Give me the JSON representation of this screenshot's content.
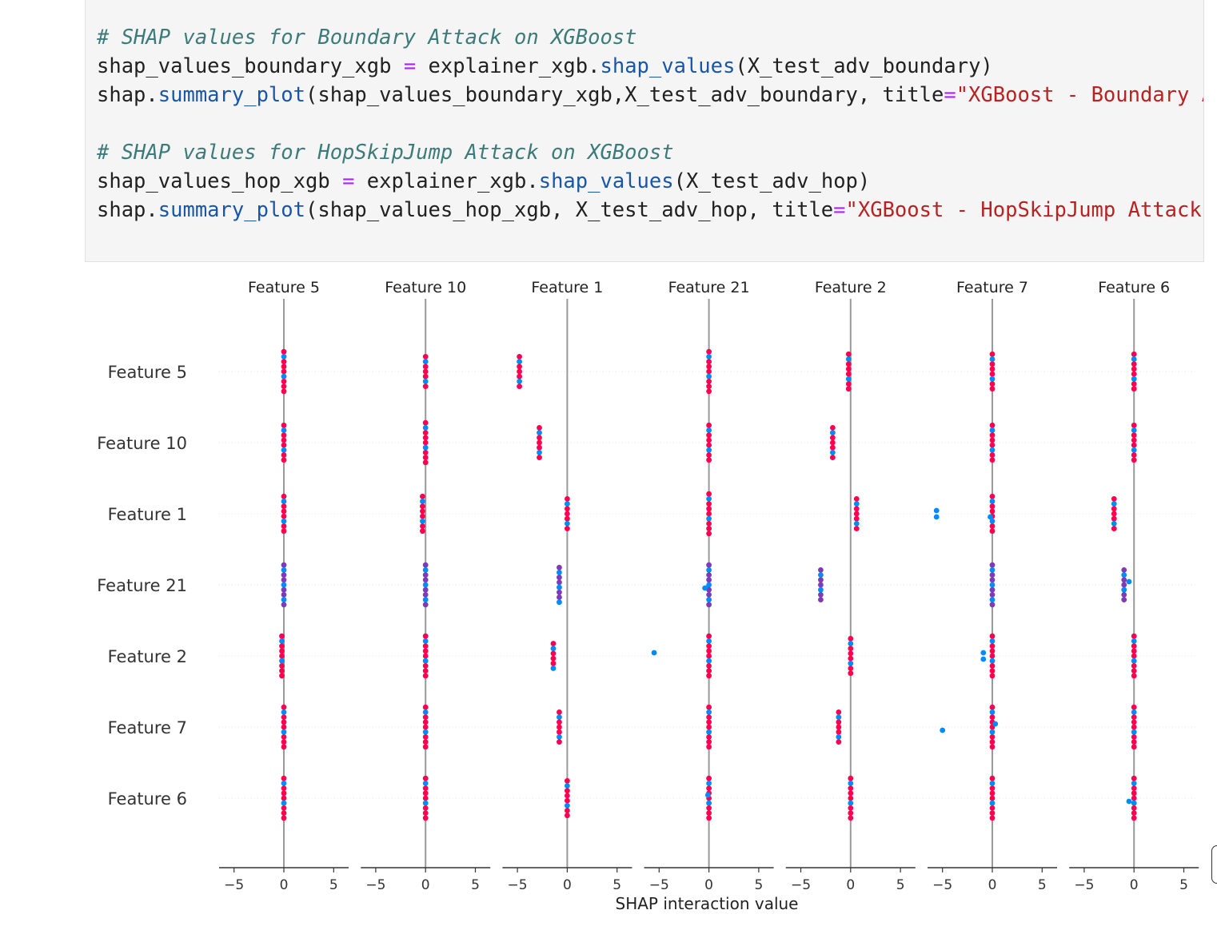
{
  "code_cell": {
    "line1_comment": "# SHAP values for Boundary Attack on XGBoost",
    "line2_var": "shap_values_boundary_xgb",
    "line2_eq": "=",
    "line2_obj": "explainer_xgb.",
    "line2_fn": "shap_values",
    "line2_args": "(X_test_adv_boundary)",
    "line3_obj": "shap.",
    "line3_fn": "summary_plot",
    "line3_args": "(shap_values_boundary_xgb,X_test_adv_boundary, title",
    "line3_eq": "=",
    "line3_str": "\"XGBoost - Boundary Attack\")",
    "line5_comment": "# SHAP values for HopSkipJump Attack on XGBoost",
    "line6_var": "shap_values_hop_xgb",
    "line6_eq": "=",
    "line6_obj": "explainer_xgb.",
    "line6_fn": "shap_values",
    "line6_args": "(X_test_adv_hop)",
    "line7_obj": "shap.",
    "line7_fn": "summary_plot",
    "line7_args": "(shap_values_hop_xgb, X_test_adv_hop, title",
    "line7_eq": "=",
    "line7_str": "\"XGBoost - HopSkipJump Attack\")"
  },
  "chart_data": {
    "type": "scatter",
    "xlabel": "SHAP interaction value",
    "xlim": [
      -6.5,
      6.5
    ],
    "xticks": [
      -5,
      0,
      5
    ],
    "xtick_labels": [
      "−5",
      "0",
      "5"
    ],
    "features": [
      "Feature 5",
      "Feature 10",
      "Feature 1",
      "Feature 21",
      "Feature 2",
      "Feature 7",
      "Feature 6"
    ],
    "colors": {
      "high": "#ff0051",
      "low": "#008bfb",
      "mid": "#7d3cb5",
      "zero_line": "#999999"
    },
    "clusters": [
      [
        {
          "x": 0,
          "n": 9,
          "c": "mix"
        },
        {
          "x": 0,
          "n": 7,
          "c": "mix"
        },
        {
          "x": -4.8,
          "n": 7,
          "c": "mix"
        },
        {
          "x": 0,
          "n": 9,
          "c": "mix"
        },
        {
          "x": -0.2,
          "n": 8,
          "c": "mix"
        },
        {
          "x": 0,
          "n": 8,
          "c": "mix"
        },
        {
          "x": 0,
          "n": 8,
          "c": "mix"
        }
      ],
      [
        {
          "x": 0,
          "n": 8,
          "c": "mix"
        },
        {
          "x": 0,
          "n": 9,
          "c": "mix"
        },
        {
          "x": -2.8,
          "n": 7,
          "c": "mix"
        },
        {
          "x": 0,
          "n": 8,
          "c": "mix"
        },
        {
          "x": -1.8,
          "n": 7,
          "c": "mix"
        },
        {
          "x": 0,
          "n": 8,
          "c": "mix"
        },
        {
          "x": 0,
          "n": 8,
          "c": "mix"
        }
      ],
      [
        {
          "x": 0,
          "n": 8,
          "c": "mix"
        },
        {
          "x": -0.3,
          "n": 8,
          "c": "mix"
        },
        {
          "x": 0,
          "n": 7,
          "c": "mix"
        },
        {
          "x": 0,
          "n": 9,
          "c": "mix"
        },
        {
          "x": 0.6,
          "n": 7,
          "c": "mix"
        },
        {
          "x": 0,
          "n": 8,
          "c": "mix"
        },
        {
          "x": -2.0,
          "n": 7,
          "c": "mix"
        }
      ],
      [
        {
          "x": 0,
          "n": 9,
          "c": "purple"
        },
        {
          "x": 0,
          "n": 9,
          "c": "purple"
        },
        {
          "x": -0.8,
          "n": 8,
          "c": "purple"
        },
        {
          "x": 0,
          "n": 9,
          "c": "purple"
        },
        {
          "x": -3.0,
          "n": 7,
          "c": "purple"
        },
        {
          "x": 0,
          "n": 9,
          "c": "purple"
        },
        {
          "x": -1.0,
          "n": 7,
          "c": "purple"
        }
      ],
      [
        {
          "x": -0.2,
          "n": 9,
          "c": "mix"
        },
        {
          "x": 0,
          "n": 9,
          "c": "mix"
        },
        {
          "x": -1.4,
          "n": 6,
          "c": "mix"
        },
        {
          "x": 0,
          "n": 9,
          "c": "mix"
        },
        {
          "x": 0,
          "n": 8,
          "c": "mix"
        },
        {
          "x": 0,
          "n": 9,
          "c": "mix"
        },
        {
          "x": 0,
          "n": 9,
          "c": "mix"
        }
      ],
      [
        {
          "x": 0,
          "n": 9,
          "c": "mix"
        },
        {
          "x": 0,
          "n": 9,
          "c": "mix"
        },
        {
          "x": -0.8,
          "n": 7,
          "c": "mix"
        },
        {
          "x": 0,
          "n": 9,
          "c": "mix"
        },
        {
          "x": -1.2,
          "n": 7,
          "c": "mix"
        },
        {
          "x": 0,
          "n": 9,
          "c": "mix"
        },
        {
          "x": 0,
          "n": 9,
          "c": "mix"
        }
      ],
      [
        {
          "x": 0,
          "n": 9,
          "c": "mix"
        },
        {
          "x": 0,
          "n": 9,
          "c": "mix"
        },
        {
          "x": 0,
          "n": 8,
          "c": "mix"
        },
        {
          "x": 0,
          "n": 9,
          "c": "mix"
        },
        {
          "x": 0,
          "n": 9,
          "c": "mix"
        },
        {
          "x": 0,
          "n": 9,
          "c": "mix"
        },
        {
          "x": 0,
          "n": 9,
          "c": "mix"
        }
      ]
    ],
    "outliers": [
      {
        "col": 3,
        "row": 4,
        "x": -5.5,
        "c": "blue"
      },
      {
        "col": 5,
        "row": 2,
        "x": -5.6,
        "c": "blue"
      },
      {
        "col": 5,
        "row": 2,
        "x": -5.6,
        "c": "blue"
      },
      {
        "col": 5,
        "row": 5,
        "x": -5.0,
        "c": "blue"
      },
      {
        "col": 5,
        "row": 5,
        "x": 0.3,
        "c": "blue"
      },
      {
        "col": 5,
        "row": 4,
        "x": -0.9,
        "c": "blue"
      },
      {
        "col": 5,
        "row": 4,
        "x": -0.9,
        "c": "blue"
      },
      {
        "col": 5,
        "row": 2,
        "x": -0.2,
        "c": "blue"
      },
      {
        "col": 6,
        "row": 3,
        "x": -0.5,
        "c": "blue"
      },
      {
        "col": 6,
        "row": 6,
        "x": -0.5,
        "c": "blue"
      },
      {
        "col": 3,
        "row": 6,
        "x": -0.1,
        "c": "blue"
      },
      {
        "col": 3,
        "row": 3,
        "x": -0.4,
        "c": "blue"
      }
    ]
  }
}
